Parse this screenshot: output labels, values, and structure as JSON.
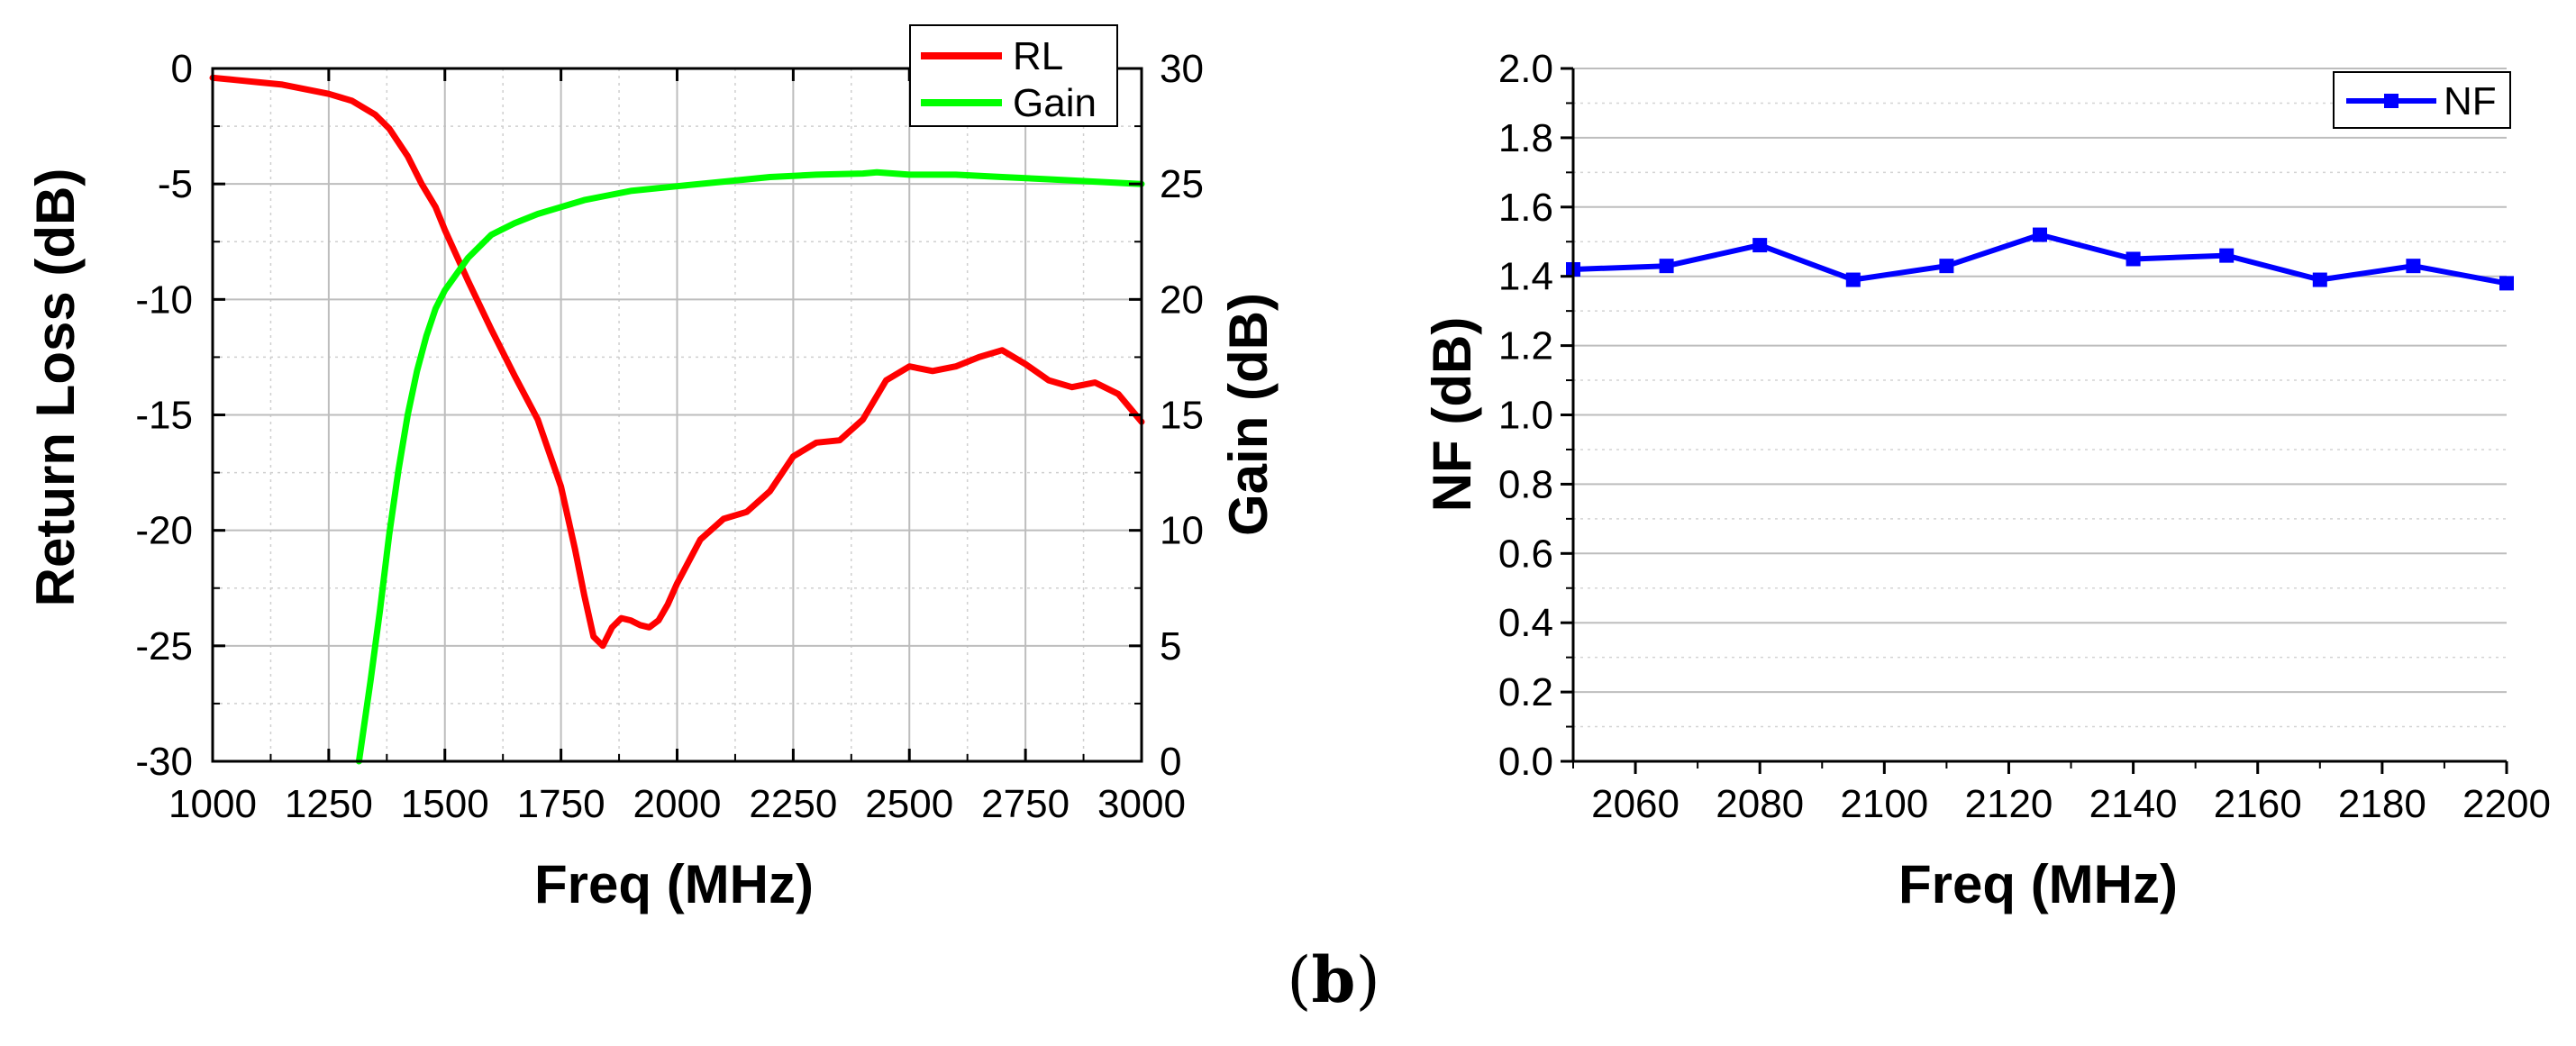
{
  "caption": {
    "open": "(",
    "letter": "b",
    "close": ")"
  },
  "chart_data": [
    {
      "type": "line",
      "title": "",
      "xlabel": "Freq (MHz)",
      "ylabel": "Return Loss (dB)",
      "y2label": "Gain (dB)",
      "xlim": [
        1000,
        3000
      ],
      "ylim": [
        -30,
        0
      ],
      "y2lim": [
        0,
        30
      ],
      "xticks": [
        1000,
        1250,
        1500,
        1750,
        2000,
        2250,
        2500,
        2750,
        3000
      ],
      "yticks": [
        0,
        -5,
        -10,
        -15,
        -20,
        -25,
        -30
      ],
      "y2ticks": [
        30,
        25,
        20,
        15,
        10,
        5,
        0
      ],
      "grid": true,
      "legend_position": "top-right",
      "series": [
        {
          "name": "RL",
          "axis": "left",
          "color": "#ff0000",
          "x": [
            1000,
            1050,
            1100,
            1150,
            1200,
            1250,
            1300,
            1350,
            1380,
            1420,
            1450,
            1480,
            1500,
            1550,
            1600,
            1650,
            1700,
            1750,
            1780,
            1800,
            1820,
            1840,
            1860,
            1880,
            1900,
            1920,
            1940,
            1960,
            1980,
            2000,
            2050,
            2100,
            2150,
            2200,
            2250,
            2300,
            2350,
            2400,
            2450,
            2500,
            2550,
            2600,
            2650,
            2700,
            2750,
            2800,
            2850,
            2900,
            2950,
            3000
          ],
          "values": [
            -0.4,
            -0.5,
            -0.6,
            -0.7,
            -0.9,
            -1.1,
            -1.4,
            -2.0,
            -2.6,
            -3.8,
            -5.0,
            -6.0,
            -7.0,
            -9.2,
            -11.3,
            -13.3,
            -15.2,
            -18.1,
            -20.8,
            -22.8,
            -24.6,
            -25.0,
            -24.2,
            -23.8,
            -23.9,
            -24.1,
            -24.2,
            -23.9,
            -23.2,
            -22.3,
            -20.4,
            -19.5,
            -19.2,
            -18.3,
            -16.8,
            -16.2,
            -16.1,
            -15.2,
            -13.5,
            -12.9,
            -13.1,
            -12.9,
            -12.5,
            -12.2,
            -12.8,
            -13.5,
            -13.8,
            -13.6,
            -14.1,
            -15.3
          ]
        },
        {
          "name": "Gain",
          "axis": "right",
          "color": "#00ff00",
          "x": [
            1315,
            1340,
            1360,
            1380,
            1400,
            1420,
            1440,
            1460,
            1480,
            1500,
            1550,
            1600,
            1650,
            1700,
            1750,
            1800,
            1850,
            1900,
            2000,
            2100,
            2200,
            2300,
            2400,
            2430,
            2500,
            2600,
            2700,
            2800,
            2900,
            3000
          ],
          "values": [
            0,
            3.5,
            6.5,
            9.8,
            12.6,
            15.0,
            16.9,
            18.4,
            19.6,
            20.4,
            21.8,
            22.8,
            23.3,
            23.7,
            24.0,
            24.3,
            24.5,
            24.7,
            24.9,
            25.1,
            25.3,
            25.4,
            25.45,
            25.5,
            25.4,
            25.4,
            25.3,
            25.2,
            25.1,
            25.0
          ]
        }
      ]
    },
    {
      "type": "line",
      "title": "",
      "xlabel": "Freq (MHz)",
      "ylabel": "NF (dB)",
      "xlim": [
        2050,
        2200
      ],
      "ylim": [
        0.0,
        2.0
      ],
      "xticks": [
        2060,
        2080,
        2100,
        2120,
        2140,
        2160,
        2180,
        2200
      ],
      "yticks": [
        "0.0",
        "0.2",
        "0.4",
        "0.6",
        "0.8",
        "1.0",
        "1.2",
        "1.4",
        "1.6",
        "1.8",
        "2.0"
      ],
      "grid": true,
      "legend_position": "top-right",
      "series": [
        {
          "name": "NF",
          "color": "#0000ff",
          "marker": "square",
          "x": [
            2050,
            2065,
            2080,
            2095,
            2110,
            2125,
            2140,
            2155,
            2170,
            2185,
            2200
          ],
          "values": [
            1.42,
            1.43,
            1.49,
            1.39,
            1.43,
            1.52,
            1.45,
            1.46,
            1.39,
            1.43,
            1.38
          ]
        }
      ]
    }
  ]
}
